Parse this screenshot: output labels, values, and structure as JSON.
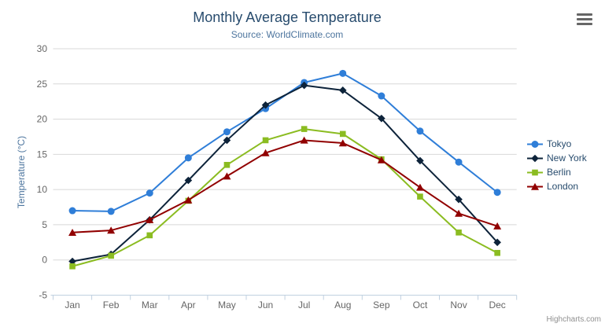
{
  "header": {
    "title": "Monthly Average Temperature",
    "subtitle": "Source: WorldClimate.com"
  },
  "credits": {
    "label": "Highcharts.com"
  },
  "context_menu": {
    "icon": "hamburger-icon"
  },
  "colors": {
    "title_text": "#274b6d",
    "subtitle_text": "#4d759e",
    "axis_title_text": "#4d759e",
    "axis_label_text": "#666666",
    "legend_text": "#274b6d",
    "grid_line": "#d8d8d8",
    "axis_line": "#c0d0e0",
    "tick": "#c0d0e0",
    "credits_text": "#909090"
  },
  "chart_data": {
    "type": "line",
    "title": "Monthly Average Temperature",
    "subtitle": "Source: WorldClimate.com",
    "xlabel": "",
    "ylabel": "Temperature (°C)",
    "ylim": [
      -5,
      30
    ],
    "ytick_step": 5,
    "grid": true,
    "legend_position": "right",
    "categories": [
      "Jan",
      "Feb",
      "Mar",
      "Apr",
      "May",
      "Jun",
      "Jul",
      "Aug",
      "Sep",
      "Oct",
      "Nov",
      "Dec"
    ],
    "series": [
      {
        "name": "Tokyo",
        "color": "#2f7ed8",
        "marker": "circle",
        "values": [
          7.0,
          6.9,
          9.5,
          14.5,
          18.2,
          21.5,
          25.2,
          26.5,
          23.3,
          18.3,
          13.9,
          9.6
        ]
      },
      {
        "name": "New York",
        "color": "#0d233a",
        "marker": "diamond",
        "values": [
          -0.2,
          0.8,
          5.7,
          11.3,
          17.0,
          22.0,
          24.8,
          24.1,
          20.1,
          14.1,
          8.6,
          2.5
        ]
      },
      {
        "name": "Berlin",
        "color": "#8bbc21",
        "marker": "square",
        "values": [
          -0.9,
          0.6,
          3.5,
          8.4,
          13.5,
          17.0,
          18.6,
          17.9,
          14.3,
          9.0,
          3.9,
          1.0
        ]
      },
      {
        "name": "London",
        "color": "#910000",
        "marker": "triangle",
        "values": [
          3.9,
          4.2,
          5.7,
          8.5,
          11.9,
          15.2,
          17.0,
          16.6,
          14.2,
          10.3,
          6.6,
          4.8
        ]
      }
    ]
  }
}
